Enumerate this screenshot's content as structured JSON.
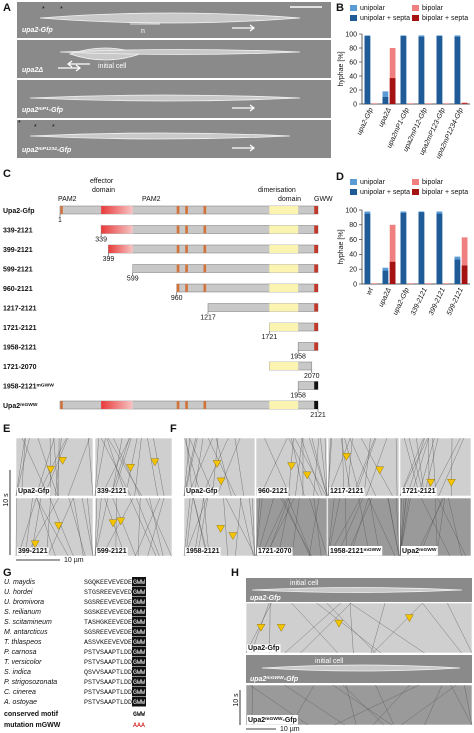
{
  "panel_labels": [
    "A",
    "B",
    "C",
    "D",
    "E",
    "F",
    "G",
    "H"
  ],
  "a": {
    "strains": [
      [
        "upa2-Gfp"
      ],
      [
        "upa2Δ"
      ],
      [
        "upa2",
        "mP1",
        "-Gfp"
      ],
      [
        "upa2",
        "mP1234",
        "-Gfp"
      ]
    ],
    "nucleus": "n",
    "initial_cell": "initial cell"
  },
  "c": {
    "pam2_n": "PAM2",
    "effector": "effector",
    "effector_domain": "domain",
    "pam2": "PAM2",
    "dimerisation": "dimerisation",
    "dimerisation_domain": "domain",
    "gww": "GWW",
    "constructs": [
      {
        "name": [
          "Upa2-Gfp"
        ],
        "start": 1,
        "end": 2121,
        "numbers": [
          1
        ]
      },
      {
        "name": [
          "339-2121"
        ],
        "start": 339,
        "end": 2121,
        "numbers": [
          339
        ]
      },
      {
        "name": [
          "399-2121"
        ],
        "start": 399,
        "end": 2121,
        "numbers": [
          399
        ]
      },
      {
        "name": [
          "599-2121"
        ],
        "start": 599,
        "end": 2121,
        "numbers": [
          599
        ]
      },
      {
        "name": [
          "960-2121"
        ],
        "start": 960,
        "end": 2121,
        "numbers": [
          960
        ]
      },
      {
        "name": [
          "1217-2121"
        ],
        "start": 1217,
        "end": 2121,
        "numbers": [
          1217
        ]
      },
      {
        "name": [
          "1721-2121"
        ],
        "start": 1721,
        "end": 2121,
        "numbers": [
          1721
        ]
      },
      {
        "name": [
          "1958-2121"
        ],
        "start": 1958,
        "end": 2121,
        "numbers": [
          1958
        ]
      },
      {
        "name": [
          "1721-2070"
        ],
        "start": 1721,
        "end": 2070,
        "numbers": [
          2070
        ]
      },
      {
        "name": [
          "1958-2121",
          "mGWW"
        ],
        "start": 1958,
        "end": 2121,
        "numbers": [
          1958
        ]
      },
      {
        "name": [
          "Upa2",
          "mGWW"
        ],
        "start": 1,
        "end": 2121,
        "numbers": [
          2121
        ]
      }
    ]
  },
  "e": {
    "tiles": [
      "Upa2-Gfp",
      "339-2121",
      "399-2121",
      "599-2121"
    ],
    "time": "10 s",
    "distance": "10 µm"
  },
  "f": {
    "tiles": [
      [
        "Upa2-Gfp"
      ],
      [
        "960-2121"
      ],
      [
        "1217-2121"
      ],
      [
        "1721-2121"
      ],
      [
        "1958-2121"
      ],
      [
        "1721-2070"
      ],
      [
        "1958-2121",
        "mGWW"
      ],
      [
        "Upa2",
        "mGWW"
      ]
    ]
  },
  "g": {
    "species": [
      {
        "name": "U. maydis",
        "prefix": "SGQKEEVEVEDE",
        "motif": "GWW"
      },
      {
        "name": "U. hordei",
        "prefix": "STGSREEVEVED",
        "motif": "GWW"
      },
      {
        "name": "U. bromivora",
        "prefix": "SGSREEVEVEDE",
        "motif": "GWW"
      },
      {
        "name": "S. reilianum",
        "prefix": "SGSKEEVEVEDE",
        "motif": "GWW"
      },
      {
        "name": "S. scitamineum",
        "prefix": "TASHGKEEVEDE",
        "motif": "GWW"
      },
      {
        "name": "M. antarcticus",
        "prefix": "SGSREEVEVEDE",
        "motif": "GWW"
      },
      {
        "name": "T. thlaspeos",
        "prefix": "ASSVKEEVEVDE",
        "motif": "GWW"
      },
      {
        "name": "P. carnosa",
        "prefix": "PSTVSAAPTLDD",
        "motif": "GWW"
      },
      {
        "name": "T. versicolor",
        "prefix": "PSTVSAAPTLDD",
        "motif": "GWW"
      },
      {
        "name": "S. indica",
        "prefix": "QSVVSAAPTLDD",
        "motif": "GWW"
      },
      {
        "name": "P. strigosozonata",
        "prefix": "PSTVSAAPTLDD",
        "motif": "GWW"
      },
      {
        "name": "C. cinerea",
        "prefix": "PSTVSAAPTLDD",
        "motif": "GWW"
      },
      {
        "name": "A. ostoyae",
        "prefix": "PSTVSAAPTLDD",
        "motif": "GWW"
      }
    ],
    "conserved": {
      "label": "conserved motif",
      "motif": "GWW"
    },
    "mutation": {
      "label": "mutation mGWW",
      "motif": "AAA"
    }
  },
  "h": {
    "initial_cell": "initial cell",
    "strain_1": [
      "upa2-Gfp"
    ],
    "kymo_1": [
      "Upa2-Gfp"
    ],
    "initial_cell_2": "initial cell",
    "strain_2": [
      "upa2",
      "mGWW",
      "-Gfp"
    ],
    "kymo_2": [
      "Upa2",
      "mGWW",
      "-Gfp"
    ],
    "time": "10 s",
    "distance": "10 µm"
  },
  "chart_data": [
    {
      "type": "bar",
      "ylabel": "hyphae [%]",
      "categories": [
        "upa2-Gfp",
        "upa2Δ",
        "upa2mP1-Gfp",
        "upa2mP12-Gfp",
        "upa2mP123-Gfp",
        "upa2mP1234-Gfp"
      ],
      "series": [
        {
          "name": "unipolar",
          "color": "#5b9bd5",
          "values": [
            98,
            18,
            98,
            98,
            98,
            98
          ]
        },
        {
          "name": "unipolar + septa",
          "color": "#1f5b96",
          "values": [
            97,
            10,
            97,
            96,
            97,
            96
          ]
        },
        {
          "name": "bipolar",
          "color": "#f08080",
          "values": [
            1,
            80,
            1,
            1,
            1,
            2
          ]
        },
        {
          "name": "bipolar + septa",
          "color": "#a51212",
          "values": [
            0,
            37,
            0,
            0,
            0,
            1
          ]
        }
      ],
      "ylim": [
        0,
        100
      ],
      "yticks": [
        0,
        20,
        40,
        60,
        80,
        100
      ]
    },
    {
      "type": "bar",
      "ylabel": "hyphae [%]",
      "categories": [
        "wt",
        "upa2Δ",
        "upa2-Gfp",
        "339-2121",
        "399-2121",
        "599-2121"
      ],
      "series": [
        {
          "name": "unipolar",
          "color": "#5b9bd5",
          "values": [
            98,
            22,
            98,
            98,
            98,
            37
          ]
        },
        {
          "name": "unipolar + septa",
          "color": "#1f5b96",
          "values": [
            95,
            18,
            96,
            97,
            95,
            33
          ]
        },
        {
          "name": "bipolar",
          "color": "#f08080",
          "values": [
            1,
            80,
            1,
            1,
            1,
            63
          ]
        },
        {
          "name": "bipolar + septa",
          "color": "#a51212",
          "values": [
            0,
            30,
            0,
            0,
            0,
            25
          ]
        }
      ],
      "ylim": [
        0,
        100
      ],
      "yticks": [
        0,
        20,
        40,
        60,
        80,
        100
      ]
    }
  ]
}
